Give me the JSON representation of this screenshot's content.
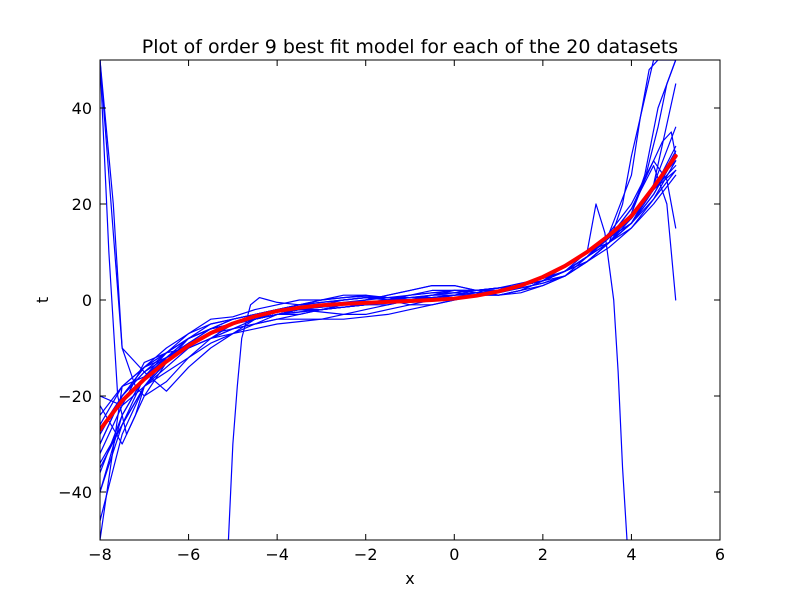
{
  "chart_data": {
    "type": "line",
    "title": "Plot of order 9 best fit model for each of the 20 datasets",
    "xlabel": "x",
    "ylabel": "t",
    "xlim": [
      -8,
      6
    ],
    "ylim": [
      -50,
      50
    ],
    "xticks": [
      -8,
      -6,
      -4,
      -2,
      0,
      2,
      4,
      6
    ],
    "xtick_labels": [
      "−8",
      "−6",
      "−4",
      "−2",
      "0",
      "2",
      "4",
      "6"
    ],
    "yticks": [
      -40,
      -20,
      0,
      20,
      40
    ],
    "ytick_labels": [
      "−40",
      "−20",
      "0",
      "20",
      "40"
    ],
    "grid": false,
    "fit_color": "#0000ff",
    "truth_color": "#ff0000",
    "series": [
      {
        "role": "fit",
        "x": [
          -8,
          -7.5,
          -7,
          -6.5,
          -6,
          -5.5,
          -5,
          -4.5,
          -4,
          -3.5,
          -3,
          -2.5,
          -2,
          -1.5,
          -1,
          -0.5,
          0,
          0.5,
          1,
          1.5,
          2,
          2.5,
          3,
          3.5,
          4,
          4.5,
          5
        ],
        "y": [
          -27,
          -20,
          -15,
          -11,
          -7,
          -4,
          -3.5,
          -2,
          -1,
          0,
          0,
          0.5,
          0.8,
          0.5,
          0,
          0,
          0.5,
          1,
          2,
          3,
          4,
          6,
          9,
          13,
          17,
          23,
          28
        ]
      },
      {
        "role": "fit",
        "x": [
          -8,
          -7.5,
          -7,
          -6.5,
          -6,
          -5.5,
          -5,
          -4.5,
          -4,
          -3.5,
          -3,
          -2.5,
          -2,
          -1.5,
          -1,
          -0.5,
          0,
          0.5,
          1,
          1.5,
          2,
          2.5,
          3,
          3.5,
          4,
          4.5,
          5
        ],
        "y": [
          -50,
          -18,
          -16,
          -12,
          -9,
          -6,
          -5,
          -3,
          -2,
          -1,
          -0.5,
          0,
          0.5,
          0,
          -0.5,
          0,
          0.5,
          1,
          1.5,
          2.5,
          3.5,
          5,
          8,
          12,
          16,
          22,
          30
        ]
      },
      {
        "role": "fit",
        "x": [
          -8,
          -7.5,
          -7,
          -6.5,
          -6,
          -5.5,
          -5,
          -4.5,
          -4,
          -3.5,
          -3,
          -2.5,
          -2,
          -1.5,
          -1,
          -0.5,
          0,
          0.5,
          1,
          1.5,
          2,
          2.5,
          3,
          3.5,
          4,
          4.5,
          5
        ],
        "y": [
          -32,
          -22,
          -13,
          -11,
          -10,
          -8,
          -6,
          -4,
          -2.5,
          -2,
          -2.5,
          -3,
          -3,
          -2,
          -1,
          0,
          1,
          2,
          2.5,
          3,
          4,
          6,
          9,
          13,
          17,
          23,
          32
        ]
      },
      {
        "role": "fit",
        "x": [
          -8,
          -7.5,
          -7,
          -6.5,
          -6,
          -5.5,
          -5,
          -4.5,
          -4,
          -3.5,
          -3,
          -2.5,
          -2,
          -1.5,
          -1,
          -0.5,
          0,
          0.5,
          1,
          1.5,
          2,
          2.5,
          3,
          3.5,
          4,
          4.5,
          5
        ],
        "y": [
          50,
          -10,
          -15,
          -19,
          -14,
          -10,
          -7,
          -4,
          -2.5,
          -2,
          -2,
          -1.5,
          -1,
          0,
          1,
          2,
          2,
          1.5,
          1,
          1.5,
          3,
          5,
          9,
          13,
          16,
          24,
          36
        ]
      },
      {
        "role": "fit",
        "x": [
          -8,
          -7.5,
          -7,
          -6.5,
          -6,
          -5.5,
          -5,
          -4.5,
          -4,
          -3.5,
          -3,
          -2.5,
          -2,
          -1.5,
          -1,
          -0.5,
          0,
          0.5,
          1,
          1.5,
          2,
          2.5,
          3,
          3.5,
          4,
          4.5,
          5
        ],
        "y": [
          -40,
          -24,
          -16,
          -12,
          -8,
          -6,
          -5,
          -4,
          -3,
          -3,
          -2,
          -1,
          0,
          1,
          2,
          3,
          3,
          2,
          1,
          2,
          4,
          7,
          10,
          12,
          15,
          20,
          26
        ]
      },
      {
        "role": "fit",
        "x": [
          -8,
          -7.5,
          -7,
          -6.5,
          -6,
          -5.5,
          -5,
          -4.5,
          -4,
          -3.5,
          -3,
          -2.5,
          -2,
          -1.5,
          -1,
          -0.5,
          0,
          0.5,
          1,
          1.5,
          2,
          2.5,
          3,
          3.5,
          4,
          4.5,
          5
        ],
        "y": [
          -22,
          -30,
          -20,
          -13,
          -8,
          -5,
          -4,
          -3,
          -2,
          -1,
          0,
          1,
          1,
          0,
          -1,
          -1,
          0,
          1,
          2,
          3,
          4,
          5,
          8,
          12,
          17,
          24,
          29
        ]
      },
      {
        "role": "fit",
        "x": [
          -8,
          -7.5,
          -7,
          -6.5,
          -6,
          -5.5,
          -5,
          -4.5,
          -4,
          -3.5,
          -3,
          -2.5,
          -2,
          -1.5,
          -1,
          -0.5,
          0,
          0.5,
          1,
          1.5,
          2,
          2.5,
          3,
          3.5,
          4,
          4.5,
          5
        ],
        "y": [
          -35,
          -26,
          -18,
          -13,
          -9,
          -7,
          -6,
          -5,
          -4,
          -3,
          -2,
          -1,
          0,
          1,
          2,
          3,
          3,
          2,
          2,
          3,
          5,
          7,
          10,
          13,
          16,
          21,
          27
        ]
      },
      {
        "role": "fit",
        "x": [
          -8,
          -7.5,
          -7,
          -6.5,
          -6,
          -5.5,
          -5,
          -4.5,
          -4,
          -3.5,
          -3,
          -2.5,
          -2,
          -1.5,
          -1,
          -0.5,
          0,
          0.5,
          1,
          1.5,
          2,
          2.5,
          3,
          3.5,
          4,
          4.5,
          5
        ],
        "y": [
          -46,
          -28,
          -18,
          -14,
          -10,
          -8,
          -7,
          -6,
          -5,
          -4.5,
          -4,
          -4,
          -3.5,
          -3,
          -2,
          -1,
          0,
          1,
          2,
          3,
          4,
          6,
          9,
          12,
          16,
          22,
          30
        ]
      },
      {
        "role": "fit",
        "x": [
          -8,
          -7.5,
          -7,
          -6.5,
          -6,
          -5.5,
          -5,
          -4.5,
          -4,
          -3.5,
          -3,
          -2.5,
          -2,
          -1.5,
          -1,
          -0.5,
          0,
          0.5,
          1,
          1.5,
          2,
          2.5,
          3,
          3.5,
          4,
          4.5,
          5
        ],
        "y": [
          -20,
          -22,
          -18,
          -15,
          -12,
          -9,
          -7,
          -5,
          -3,
          -2,
          -1,
          -1,
          -1,
          -1,
          0,
          1,
          2,
          2,
          2,
          3,
          4,
          6,
          9,
          13,
          17,
          23,
          31
        ]
      },
      {
        "role": "fit",
        "x": [
          -8,
          -7.5,
          -7,
          -6.5,
          -6,
          -5.5,
          -5,
          -4.5,
          -4,
          -3.5,
          -3,
          -2.5,
          -2,
          -1.5,
          -1,
          -0.5,
          0,
          0.5,
          1,
          1.5,
          2,
          2.5,
          3,
          3.5,
          4,
          4.5,
          5
        ],
        "y": [
          -30,
          -20,
          -14,
          -12,
          -10,
          -8,
          -6,
          -5,
          -4,
          -4,
          -4,
          -3,
          -2,
          -1,
          0,
          1,
          1,
          1,
          1,
          2,
          4,
          6,
          8,
          11,
          15,
          21,
          29
        ]
      },
      {
        "role": "fit",
        "x": [
          -8,
          -7.7,
          -7.5,
          -7.2,
          -7,
          -6.5,
          -6,
          -5.5,
          -5,
          -4.5,
          -4,
          -3.5,
          -3,
          -2.5,
          -2,
          -1.5,
          -1,
          -0.5,
          0,
          0.5,
          1,
          1.5,
          2,
          2.5,
          3,
          3.5,
          3.8,
          4,
          4.5,
          5
        ],
        "y": [
          50,
          20,
          -10,
          -18,
          -20,
          -17,
          -12,
          -8,
          -5,
          -3,
          -2,
          -1,
          0,
          0.5,
          1,
          0.5,
          0,
          0,
          0.5,
          1,
          2,
          3,
          4,
          6,
          9,
          12,
          20,
          30,
          50,
          50
        ]
      },
      {
        "role": "fit",
        "x": [
          -5.1,
          -5.0,
          -4.9,
          -4.8,
          -4.6,
          -4.4,
          -4.2,
          -4,
          -3.5,
          -3,
          -2.5,
          -2,
          -1.5,
          -1,
          -0.5,
          0,
          0.5,
          1,
          1.5,
          2,
          2.5,
          3,
          3.2,
          3.4,
          3.6,
          3.7,
          3.8,
          3.9
        ],
        "y": [
          -50,
          -30,
          -18,
          -8,
          -1,
          0.5,
          0,
          -0.5,
          -1,
          -1,
          -0.5,
          0,
          0.5,
          1,
          1.5,
          2,
          2,
          2.5,
          3.5,
          4.5,
          6,
          10,
          20,
          14,
          0,
          -15,
          -35,
          -50
        ]
      },
      {
        "role": "fit",
        "x": [
          -8,
          -7.5,
          -7,
          -6.5,
          -6,
          -5.5,
          -5,
          -4.5,
          -4,
          -3.5,
          -3,
          -2.5,
          -2,
          -1.5,
          -1,
          -0.5,
          0,
          0.5,
          1,
          1.5,
          2,
          2.5,
          3,
          3.5,
          4,
          4.5,
          4.7,
          4.9,
          5
        ],
        "y": [
          -30,
          -20,
          -14,
          -10,
          -7,
          -5,
          -4,
          -3,
          -2.5,
          -2,
          -2,
          -1.5,
          -1,
          -0.5,
          0,
          0.5,
          1,
          1.5,
          2,
          3,
          4,
          6,
          9,
          13,
          19,
          29,
          33,
          35,
          30
        ]
      },
      {
        "role": "fit",
        "x": [
          -8,
          -7.5,
          -7,
          -6.5,
          -6,
          -5.5,
          -5,
          -4.5,
          -4,
          -3.5,
          -3,
          -2.5,
          -2,
          -1.5,
          -1,
          -0.5,
          0,
          0.5,
          1,
          1.5,
          2,
          2.5,
          3,
          3.5,
          4,
          4.5,
          4.8,
          5
        ],
        "y": [
          -26,
          -18,
          -14,
          -11,
          -8,
          -6,
          -5,
          -4,
          -3,
          -2,
          -1.5,
          -1,
          -0.5,
          0,
          0.5,
          1,
          1.5,
          2,
          2.5,
          3,
          4,
          6,
          9,
          14,
          20,
          29,
          25,
          15
        ]
      },
      {
        "role": "fit",
        "x": [
          -8,
          -7.5,
          -7,
          -6.5,
          -6,
          -5.5,
          -5,
          -4.5,
          -4,
          -3.5,
          -3,
          -2.5,
          -2,
          -1.5,
          -1,
          -0.5,
          0,
          0.5,
          1,
          1.5,
          2,
          2.5,
          3,
          3.5,
          4,
          4.5,
          4.8,
          5
        ],
        "y": [
          -28,
          -20,
          -15,
          -12,
          -9,
          -7,
          -5,
          -4,
          -3,
          -2.5,
          -2,
          -1.5,
          -1,
          -0.5,
          0,
          0.5,
          1,
          1.5,
          2,
          3,
          4,
          6,
          9,
          13,
          19,
          28,
          20,
          0
        ]
      },
      {
        "role": "fit",
        "x": [
          -8,
          -7.5,
          -7,
          -6.5,
          -6,
          -5.5,
          -5,
          -4.5,
          -4,
          -3.5,
          -3,
          -2.5,
          -2,
          -1.5,
          -1,
          -0.5,
          0,
          0.5,
          1,
          1.5,
          2,
          2.5,
          3,
          3.5,
          4,
          4.5,
          5
        ],
        "y": [
          -36,
          -24,
          -16,
          -12,
          -9,
          -6,
          -4,
          -3,
          -2,
          -2,
          -2,
          -1.5,
          -1,
          0,
          1,
          1.5,
          1.5,
          1,
          1,
          2,
          3,
          5,
          8,
          12,
          16,
          24,
          45
        ]
      },
      {
        "role": "fit",
        "x": [
          -8,
          -7.8,
          -7.6,
          -7.4,
          -7.2,
          -7,
          -6.5,
          -6,
          -5.5,
          -5,
          -4.5,
          -4,
          -3.5,
          -3,
          -2.5,
          -2,
          -1.5,
          -1,
          -0.5,
          0,
          0.5,
          1,
          1.5,
          2,
          2.5,
          3,
          3.5,
          4,
          4.2,
          4.4,
          4.6
        ],
        "y": [
          50,
          10,
          -20,
          -28,
          -24,
          -18,
          -12,
          -8,
          -6,
          -4,
          -3,
          -2,
          -1,
          -0.5,
          0,
          0.5,
          0.5,
          0,
          0,
          0.5,
          1,
          2,
          3,
          4,
          6,
          9,
          14,
          26,
          38,
          48,
          50
        ]
      },
      {
        "role": "fit",
        "x": [
          -8,
          -7.5,
          -7,
          -6.5,
          -6,
          -5.5,
          -5,
          -4.5,
          -4,
          -3.5,
          -3,
          -2.5,
          -2,
          -1.5,
          -1,
          -0.5,
          0,
          0.5,
          1,
          1.5,
          2,
          2.5,
          3,
          3.5,
          4,
          4.3,
          4.6,
          4.8,
          5
        ],
        "y": [
          -24,
          -18,
          -14,
          -11,
          -8,
          -6,
          -5,
          -4,
          -3,
          -2,
          -1.5,
          -1,
          -0.5,
          0,
          0.5,
          1,
          1.5,
          2,
          2.5,
          3,
          4,
          6,
          9,
          13,
          18,
          25,
          36,
          45,
          50
        ]
      },
      {
        "role": "fit",
        "x": [
          -8,
          -7.5,
          -7,
          -6.5,
          -6,
          -5.5,
          -5,
          -4.5,
          -4,
          -3.5,
          -3,
          -2.5,
          -2,
          -1.5,
          -1,
          -0.5,
          0,
          0.5,
          1,
          1.5,
          2,
          2.5,
          3,
          3.5,
          4,
          4.3,
          4.6,
          5
        ],
        "y": [
          -34,
          -26,
          -18,
          -13,
          -9,
          -7,
          -5,
          -4,
          -3,
          -2.5,
          -2,
          -1.5,
          -1,
          -0.5,
          0,
          0.5,
          1,
          1.5,
          2,
          3,
          4,
          6,
          8,
          12,
          18,
          26,
          40,
          50
        ]
      },
      {
        "role": "fit",
        "x": [
          -8,
          -7.5,
          -7,
          -6.5,
          -6,
          -5.5,
          -5,
          -4.5,
          -4,
          -3.5,
          -3,
          -2.5,
          -2,
          -1.5,
          -1,
          -0.5,
          0,
          0.5,
          1,
          1.5,
          2,
          2.5,
          3,
          3.5,
          4,
          4.5,
          5
        ],
        "y": [
          -40,
          -26,
          -16,
          -11,
          -8,
          -6,
          -5,
          -4,
          -3,
          -2,
          -1,
          0,
          0.5,
          0.5,
          0.5,
          0.5,
          1,
          1.5,
          2,
          2.5,
          3.5,
          5,
          8,
          12,
          16,
          23,
          27
        ]
      },
      {
        "role": "truth",
        "x": [
          -8,
          -7.5,
          -7,
          -6.5,
          -6,
          -5.5,
          -5,
          -4.5,
          -4,
          -3.5,
          -3,
          -2.5,
          -2,
          -1.5,
          -1,
          -0.5,
          0,
          0.5,
          1,
          1.5,
          2,
          2.5,
          3,
          3.5,
          4,
          4.5,
          5
        ],
        "y": [
          -27,
          -21,
          -16.5,
          -12.8,
          -9.5,
          -6.9,
          -4.9,
          -3.4,
          -2.3,
          -1.6,
          -1.1,
          -0.8,
          -0.6,
          -0.4,
          -0.2,
          0,
          0.3,
          0.9,
          1.8,
          3,
          4.8,
          7.1,
          10,
          13.5,
          17.5,
          23.5,
          30
        ]
      }
    ]
  }
}
